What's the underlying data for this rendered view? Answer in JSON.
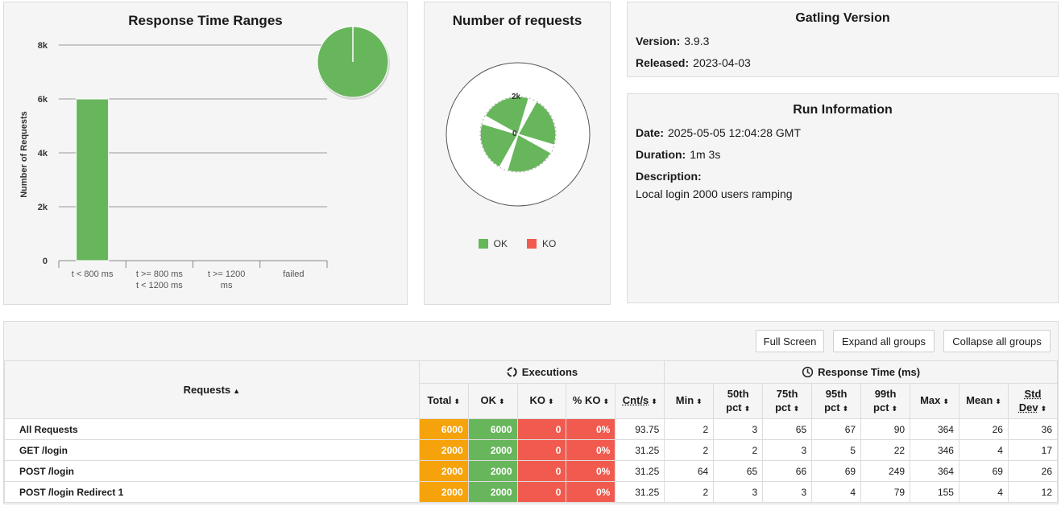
{
  "response_time_ranges": {
    "title": "Response Time Ranges",
    "chart_data": {
      "type": "bar",
      "title": "Response Time Ranges",
      "ylabel": "Number of Requests",
      "xlabel": "",
      "categories": [
        "t < 800 ms",
        "t >= 800 ms\nt < 1200 ms",
        "t >= 1200\nms",
        "failed"
      ],
      "category_lines": [
        [
          "t < 800 ms"
        ],
        [
          "t >= 800 ms",
          "t < 1200 ms"
        ],
        [
          "t >= 1200",
          "ms"
        ],
        [
          "failed"
        ]
      ],
      "values": [
        6000,
        0,
        0,
        0
      ],
      "yticks": [
        "0",
        "2k",
        "4k",
        "6k",
        "8k"
      ],
      "ylim": [
        0,
        8000
      ],
      "grid": true,
      "color": "#68b65c",
      "pie": {
        "slices": [
          6000
        ],
        "color": "#68b65c"
      }
    }
  },
  "number_of_requests": {
    "title": "Number of requests",
    "chart_data": {
      "type": "polar-area",
      "title": "Number of requests",
      "series": [
        {
          "name": "OK",
          "values": [
            6000,
            2000,
            2000,
            2000
          ]
        },
        {
          "name": "KO",
          "values": [
            0,
            0,
            0,
            0
          ]
        }
      ],
      "radial_ticks": [
        "0",
        "2k"
      ],
      "legend_position": "bottom",
      "colors": {
        "OK": "#68b65c",
        "KO": "#f15b4f"
      }
    },
    "legend": [
      {
        "label": "OK",
        "color": "#68b65c"
      },
      {
        "label": "KO",
        "color": "#f15b4f"
      }
    ]
  },
  "gatling_version": {
    "title": "Gatling Version",
    "version_label": "Version:",
    "version": "3.9.3",
    "released_label": "Released:",
    "released": "2023-04-03"
  },
  "run_information": {
    "title": "Run Information",
    "date_label": "Date:",
    "date": "2025-05-05 12:04:28 GMT",
    "duration_label": "Duration:",
    "duration": "1m 3s",
    "description_label": "Description:",
    "description": "Local login 2000 users ramping"
  },
  "toolbar": {
    "full_screen": "Full Screen",
    "expand_all": "Expand all groups",
    "collapse_all": "Collapse all groups"
  },
  "table": {
    "requests_header": "Requests",
    "executions_header": "Executions",
    "response_time_header": "Response Time (ms)",
    "columns": [
      "Total",
      "OK",
      "KO",
      "% KO",
      "Cnt/s",
      "Min",
      "50th pct",
      "75th pct",
      "95th pct",
      "99th pct",
      "Max",
      "Mean",
      "Std Dev"
    ],
    "rows": [
      {
        "name": "All Requests",
        "cells": [
          "6000",
          "6000",
          "0",
          "0%",
          "93.75",
          "2",
          "3",
          "65",
          "67",
          "90",
          "364",
          "26",
          "36"
        ]
      },
      {
        "name": "GET /login",
        "cells": [
          "2000",
          "2000",
          "0",
          "0%",
          "31.25",
          "2",
          "2",
          "3",
          "5",
          "22",
          "346",
          "4",
          "17"
        ]
      },
      {
        "name": "POST /login",
        "cells": [
          "2000",
          "2000",
          "0",
          "0%",
          "31.25",
          "64",
          "65",
          "66",
          "69",
          "249",
          "364",
          "69",
          "26"
        ]
      },
      {
        "name": "POST /login Redirect 1",
        "cells": [
          "2000",
          "2000",
          "0",
          "0%",
          "31.25",
          "2",
          "3",
          "3",
          "4",
          "79",
          "155",
          "4",
          "12"
        ]
      }
    ]
  }
}
